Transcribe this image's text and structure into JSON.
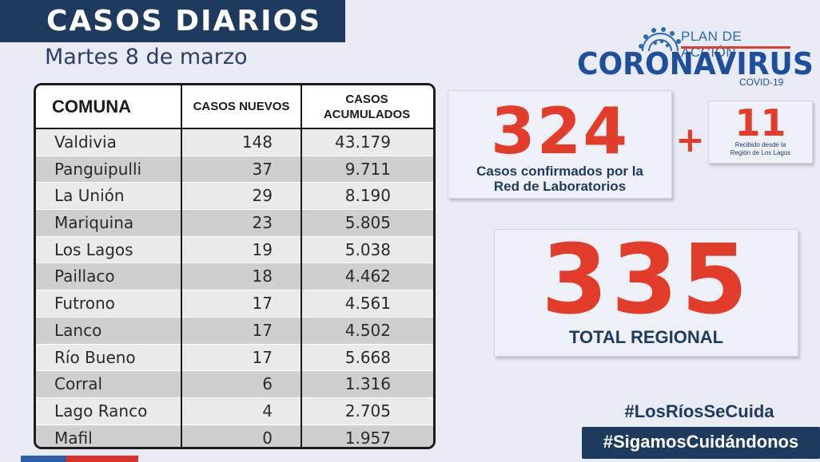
{
  "header": {
    "title": "CASOS DIARIOS",
    "date": "Martes 8 de marzo"
  },
  "logo": {
    "plan": "PLAN DE ACCIÓN",
    "main": "CORONAVIRUS",
    "sub": "COVID-19"
  },
  "table": {
    "headers": {
      "comuna": "COMUNA",
      "nuevos": "CASOS NUEVOS",
      "acumulados_1": "CASOS",
      "acumulados_2": "ACUMULADOS"
    },
    "rows": [
      {
        "comuna": "Valdivia",
        "nuevos": "148",
        "acumulados": "43.179"
      },
      {
        "comuna": "Panguipulli",
        "nuevos": "37",
        "acumulados": "9.711"
      },
      {
        "comuna": "La Unión",
        "nuevos": "29",
        "acumulados": "8.190"
      },
      {
        "comuna": "Mariquina",
        "nuevos": "23",
        "acumulados": "5.805"
      },
      {
        "comuna": "Los Lagos",
        "nuevos": "19",
        "acumulados": "5.038"
      },
      {
        "comuna": "Paillaco",
        "nuevos": "18",
        "acumulados": "4.462"
      },
      {
        "comuna": "Futrono",
        "nuevos": "17",
        "acumulados": "4.561"
      },
      {
        "comuna": "Lanco",
        "nuevos": "17",
        "acumulados": "4.502"
      },
      {
        "comuna": "Río Bueno",
        "nuevos": "17",
        "acumulados": "5.668"
      },
      {
        "comuna": "Corral",
        "nuevos": "6",
        "acumulados": "1.316"
      },
      {
        "comuna": "Lago Ranco",
        "nuevos": "4",
        "acumulados": "2.705"
      },
      {
        "comuna": "Mafil",
        "nuevos": "0",
        "acumulados": "1.957"
      }
    ]
  },
  "stats": {
    "confirmed_value": "324",
    "confirmed_label_1": "Casos confirmados  por la",
    "confirmed_label_2": "Red de Laboratorios",
    "plus": "+",
    "extra_value": "11",
    "extra_label_1": "Recibido desde la",
    "extra_label_2": "Región de Los Lagos",
    "total_value": "335",
    "total_label": "TOTAL REGIONAL"
  },
  "hashtags": {
    "first": "#LosRíosSeCuida",
    "second": "#SigamosCuidándonos"
  },
  "colors": {
    "navy": "#1f3a5f",
    "red": "#e23c2a",
    "background": "#e8eaf4"
  },
  "icons": {
    "logo": "virus-icon"
  }
}
